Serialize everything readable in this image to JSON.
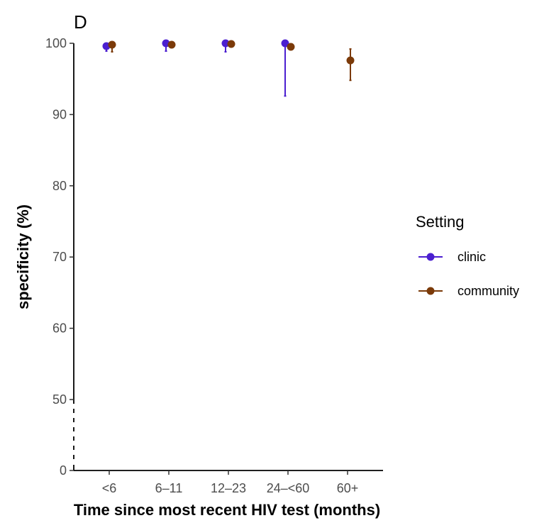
{
  "chart_data": {
    "type": "scatter",
    "panel_label": "D",
    "xlabel": "Time since most recent HIV test (months)",
    "ylabel": "specificity (%)",
    "categories": [
      "<6",
      "6–11",
      "12–23",
      "24–<60",
      "60+"
    ],
    "y_ticks": [
      "0",
      "50",
      "60",
      "70",
      "80",
      "90",
      "100"
    ],
    "ylim_display": [
      50,
      100
    ],
    "axis_break": true,
    "legend": {
      "title": "Setting",
      "placement": "right"
    },
    "series": [
      {
        "name": "clinic",
        "color": "#4B1FD0",
        "points": [
          {
            "category": "<6",
            "value": 99.6,
            "lower": 98.9,
            "upper": 100
          },
          {
            "category": "6–11",
            "value": 100,
            "lower": 98.9,
            "upper": 100
          },
          {
            "category": "12–23",
            "value": 100,
            "lower": 98.8,
            "upper": 100
          },
          {
            "category": "24–<60",
            "value": 100,
            "lower": 92.6,
            "upper": 100
          }
        ]
      },
      {
        "name": "community",
        "color": "#7B3A09",
        "points": [
          {
            "category": "<6",
            "value": 99.8,
            "lower": 98.8,
            "upper": 100
          },
          {
            "category": "6–11",
            "value": 99.8,
            "lower": 99.6,
            "upper": 100
          },
          {
            "category": "12–23",
            "value": 99.9,
            "lower": 99.7,
            "upper": 100
          },
          {
            "category": "24–<60",
            "value": 99.5,
            "lower": 99.3,
            "upper": 99.8
          },
          {
            "category": "60+",
            "value": 97.6,
            "lower": 94.8,
            "upper": 99.2
          }
        ]
      }
    ]
  }
}
